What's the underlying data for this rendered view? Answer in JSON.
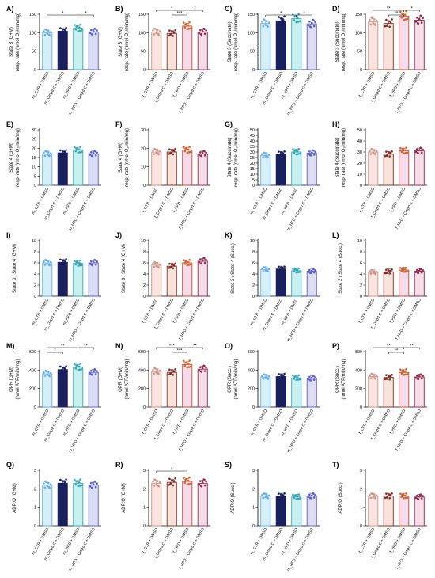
{
  "chart_data": [
    {
      "type": "bar",
      "panel": "A)",
      "ylabel": [
        "State 3 (G+M)",
        "resp. rate (nmol O₂/min/mg)"
      ],
      "ylim": [
        0,
        150
      ],
      "yticks": [
        0,
        50,
        100,
        150
      ],
      "palette": "male",
      "categories": [
        "m_CTR + DMSO",
        "m_Cmpd C + DMSO",
        "m_HFD + DMSO",
        "m_HFD + Cmpd C + DMSO"
      ],
      "values": [
        100,
        104,
        112,
        102
      ],
      "sig": [
        {
          "from": 0,
          "to": 2,
          "label": "*",
          "level": 1
        },
        {
          "from": 2,
          "to": 3,
          "label": "*",
          "level": 1
        }
      ]
    },
    {
      "type": "bar",
      "panel": "B)",
      "ylabel": [
        "State 3 (G+M)",
        "resp. rate (nmol O₂/min/mg)"
      ],
      "ylim": [
        0,
        150
      ],
      "yticks": [
        0,
        50,
        100,
        150
      ],
      "palette": "female",
      "categories": [
        "f_CTR + DMSO",
        "f_Cmpd C + DMSO",
        "f_HFD + DMSO",
        "f_HFD + Cmpd C + DMSO"
      ],
      "values": [
        102,
        98,
        118,
        102
      ],
      "sig": [
        {
          "from": 0,
          "to": 2,
          "label": "*",
          "level": 2
        },
        {
          "from": 2,
          "to": 3,
          "label": "*",
          "level": 2
        },
        {
          "from": 1,
          "to": 2,
          "label": "***",
          "level": 1
        }
      ]
    },
    {
      "type": "bar",
      "panel": "C)",
      "ylabel": [
        "State 3 (Succinate)",
        "resp. rate (nmol O₂/min/mg)"
      ],
      "ylim": [
        0,
        150
      ],
      "yticks": [
        0,
        50,
        100,
        150
      ],
      "palette": "male",
      "categories": [
        "m_CTR + DMSO",
        "m_Cmpd C + DMSO",
        "m_HFD + DMSO",
        "m_HFD + Cmpd C + DMSO"
      ],
      "values": [
        125,
        132,
        138,
        124
      ],
      "sig": [
        {
          "from": 0,
          "to": 2,
          "label": "*",
          "level": 1
        },
        {
          "from": 2,
          "to": 3,
          "label": "*",
          "level": 1
        }
      ]
    },
    {
      "type": "bar",
      "panel": "D)",
      "ylabel": [
        "State 3 (Succinate)",
        "resp. rate (nmol O₂/min/mg)"
      ],
      "ylim": [
        0,
        150
      ],
      "yticks": [
        0,
        50,
        100,
        150
      ],
      "palette": "female",
      "categories": [
        "f_CTR + DMSO",
        "f_Cmpd C + DMSO",
        "f_HFD + DMSO",
        "f_HFD + Cmpd C + DMSO"
      ],
      "values": [
        130,
        125,
        145,
        134
      ],
      "sig": [
        {
          "from": 0,
          "to": 2,
          "label": "**",
          "level": 2
        },
        {
          "from": 2,
          "to": 3,
          "label": "*",
          "level": 2
        },
        {
          "from": 1,
          "to": 2,
          "label": "**",
          "level": 1
        }
      ]
    },
    {
      "type": "bar",
      "panel": "E)",
      "ylabel": [
        "State 4 (G+M)",
        "resp. rate (nmol O₂/min/mg)"
      ],
      "ylim": [
        0,
        30
      ],
      "yticks": [
        0,
        5,
        10,
        15,
        20,
        25,
        30
      ],
      "palette": "male",
      "categories": [
        "m_CTR + DMSO",
        "m_Cmpd C + DMSO",
        "m_HFD + DMSO",
        "m_HFD + Cmpd C + DMSO"
      ],
      "values": [
        17,
        17.5,
        19,
        17
      ],
      "sig": []
    },
    {
      "type": "bar",
      "panel": "F)",
      "ylabel": [
        "State 4 (G+M)",
        "resp. rate (nmol O₂/min/mg)"
      ],
      "ylim": [
        0,
        30
      ],
      "yticks": [
        0,
        10,
        20,
        30
      ],
      "palette": "female",
      "categories": [
        "f_CTR + DMSO",
        "f_Cmpd C + DMSO",
        "f_HFD + DMSO",
        "f_HFD + Cmpd C + DMSO"
      ],
      "values": [
        18,
        18,
        19,
        17
      ],
      "sig": []
    },
    {
      "type": "bar",
      "panel": "G)",
      "ylabel": [
        "State 4 (Succinate)",
        "resp. rate (nmol O₂/min/mg)"
      ],
      "ylim": [
        0,
        50
      ],
      "yticks": [
        0,
        5,
        10,
        15,
        20,
        25,
        30,
        35,
        40,
        45,
        50
      ],
      "palette": "male",
      "categories": [
        "m_CTR + DMSO",
        "m_Cmpd C + DMSO",
        "m_HFD + DMSO",
        "m_HFD + Cmpd C + DMSO"
      ],
      "values": [
        27,
        28,
        30,
        29
      ],
      "sig": []
    },
    {
      "type": "bar",
      "panel": "H)",
      "ylabel": [
        "State 4 (Succinate)",
        "resp. rate (nmol O₂/min/mg)"
      ],
      "ylim": [
        0,
        50
      ],
      "yticks": [
        0,
        10,
        20,
        30,
        40,
        50
      ],
      "palette": "female",
      "categories": [
        "f_CTR + DMSO",
        "f_Cmpd C + DMSO",
        "f_HFD + DMSO",
        "f_HFD + Cmpd C + DMSO"
      ],
      "values": [
        30,
        28,
        31,
        31
      ],
      "sig": []
    },
    {
      "type": "bar",
      "panel": "I)",
      "ylabel": [
        "State 3 / State 4 (G+M)"
      ],
      "ylim": [
        0,
        10
      ],
      "yticks": [
        0,
        2,
        4,
        6,
        8,
        10
      ],
      "palette": "male",
      "categories": [
        "m_CTR + DMSO",
        "m_Cmpd C + DMSO",
        "m_HFD + DMSO",
        "m_HFD + Cmpd C + DMSO"
      ],
      "values": [
        6,
        6.1,
        5.9,
        6
      ],
      "sig": []
    },
    {
      "type": "bar",
      "panel": "J)",
      "ylabel": [
        "State 3 / State 4 (G+M)"
      ],
      "ylim": [
        0,
        10
      ],
      "yticks": [
        0,
        2,
        4,
        6,
        8,
        10
      ],
      "palette": "female",
      "categories": [
        "f_CTR + DMSO",
        "f_Cmpd C + DMSO",
        "f_HFD + DMSO",
        "f_HFD + Cmpd C + DMSO"
      ],
      "values": [
        5.6,
        5.4,
        6,
        6.3
      ],
      "sig": []
    },
    {
      "type": "bar",
      "panel": "K)",
      "ylabel": [
        "State 3 / State 4 (Succ.)"
      ],
      "ylim": [
        0,
        10
      ],
      "yticks": [
        0,
        2,
        4,
        6,
        8,
        10
      ],
      "palette": "male",
      "categories": [
        "m_CTR + DMSO",
        "m_Cmpd C + DMSO",
        "m_HFD + DMSO",
        "m_HFD + Cmpd C + DMSO"
      ],
      "values": [
        4.8,
        4.9,
        4.6,
        4.5
      ],
      "sig": []
    },
    {
      "type": "bar",
      "panel": "L)",
      "ylabel": [
        "State 3 / State 4 (Succ.)"
      ],
      "ylim": [
        0,
        10
      ],
      "yticks": [
        0,
        2,
        4,
        6,
        8,
        10
      ],
      "palette": "female",
      "categories": [
        "f_CTR + DMSO",
        "f_Cmpd C + DMSO",
        "f_HFD + DMSO",
        "f_HFD + Cmpd C + DMSO"
      ],
      "values": [
        4.3,
        4.4,
        4.7,
        4.5
      ],
      "sig": []
    },
    {
      "type": "bar",
      "panel": "M)",
      "ylabel": [
        "OPR (G+M)",
        "(nmol ATP/min/mg)"
      ],
      "ylim": [
        0,
        600
      ],
      "yticks": [
        0,
        200,
        400,
        600
      ],
      "palette": "male",
      "categories": [
        "m_CTR + DMSO",
        "m_Cmpd C + DMSO",
        "m_HFD + DMSO",
        "m_HFD + Cmpd C + DMSO"
      ],
      "values": [
        360,
        405,
        430,
        375
      ],
      "sig": [
        {
          "from": 0,
          "to": 2,
          "label": "**",
          "level": 2
        },
        {
          "from": 2,
          "to": 3,
          "label": "**",
          "level": 2
        },
        {
          "from": 0,
          "to": 1,
          "label": "*",
          "level": 1
        }
      ]
    },
    {
      "type": "bar",
      "panel": "N)",
      "ylabel": [
        "OPR (G+M)",
        "(nmol ATP/min/mg)"
      ],
      "ylim": [
        0,
        600
      ],
      "yticks": [
        0,
        200,
        400,
        600
      ],
      "palette": "female",
      "categories": [
        "f_CTR + DMSO",
        "f_Cmpd C + DMSO",
        "f_HFD + DMSO",
        "f_HFD + Cmpd C + DMSO"
      ],
      "values": [
        385,
        375,
        460,
        410
      ],
      "sig": [
        {
          "from": 0,
          "to": 2,
          "label": "***",
          "level": 2
        },
        {
          "from": 2,
          "to": 3,
          "label": "**",
          "level": 2
        },
        {
          "from": 1,
          "to": 2,
          "label": "***",
          "level": 1
        }
      ]
    },
    {
      "type": "bar",
      "panel": "O)",
      "ylabel": [
        "OPR (Succ.)",
        "(nmol ATP/min/mg)"
      ],
      "ylim": [
        0,
        600
      ],
      "yticks": [
        0,
        200,
        400,
        600
      ],
      "palette": "male",
      "categories": [
        "m_CTR + DMSO",
        "m_Cmpd C + DMSO",
        "m_HFD + DMSO",
        "m_HFD + Cmpd C + DMSO"
      ],
      "values": [
        325,
        330,
        315,
        310
      ],
      "sig": []
    },
    {
      "type": "bar",
      "panel": "P)",
      "ylabel": [
        "OPR (Succ.)",
        "(nmol ATP/min/mg)"
      ],
      "ylim": [
        0,
        600
      ],
      "yticks": [
        0,
        200,
        400,
        600
      ],
      "palette": "female",
      "categories": [
        "f_CTR + DMSO",
        "f_Cmpd C + DMSO",
        "f_HFD + DMSO",
        "f_HFD + Cmpd C + DMSO"
      ],
      "values": [
        330,
        320,
        375,
        325
      ],
      "sig": [
        {
          "from": 0,
          "to": 2,
          "label": "**",
          "level": 2
        },
        {
          "from": 2,
          "to": 3,
          "label": "**",
          "level": 2
        },
        {
          "from": 1,
          "to": 2,
          "label": "**",
          "level": 1
        }
      ]
    },
    {
      "type": "bar",
      "panel": "Q)",
      "ylabel": [
        "ADP:O (G+M)"
      ],
      "ylim": [
        0,
        3
      ],
      "yticks": [
        0,
        1,
        2,
        3
      ],
      "palette": "male",
      "categories": [
        "m_CTR + DMSO",
        "m_Cmpd C + DMSO",
        "m_HFD + DMSO",
        "m_HFD + Cmpd C + DMSO"
      ],
      "values": [
        2.2,
        2.3,
        2.3,
        2.2
      ],
      "sig": []
    },
    {
      "type": "bar",
      "panel": "R)",
      "ylabel": [
        "ADP:O (G+M)"
      ],
      "ylim": [
        0,
        3
      ],
      "yticks": [
        0,
        1,
        2,
        3
      ],
      "palette": "female",
      "categories": [
        "f_CTR + DMSO",
        "f_Cmpd C + DMSO",
        "f_HFD + DMSO",
        "f_HFD + Cmpd C + DMSO"
      ],
      "values": [
        2.3,
        2.35,
        2.4,
        2.3
      ],
      "sig": [
        {
          "from": 0,
          "to": 2,
          "label": "*",
          "level": 1
        }
      ]
    },
    {
      "type": "bar",
      "panel": "S)",
      "ylabel": [
        "ADP:O (Succ.)"
      ],
      "ylim": [
        0,
        3
      ],
      "yticks": [
        0,
        1,
        2,
        3
      ],
      "palette": "male",
      "categories": [
        "m_CTR + DMSO",
        "m_Cmpd C + DMSO",
        "m_HFD + DMSO",
        "m_HFD + Cmpd C + DMSO"
      ],
      "values": [
        1.6,
        1.6,
        1.55,
        1.6
      ],
      "sig": []
    },
    {
      "type": "bar",
      "panel": "T)",
      "ylabel": [
        "ADP:O (Succ.)"
      ],
      "ylim": [
        0,
        3
      ],
      "yticks": [
        0,
        1,
        2,
        3
      ],
      "palette": "female",
      "categories": [
        "f_CTR + DMSO",
        "f_Cmpd C + DMSO",
        "f_HFD + DMSO",
        "f_HFD + Cmpd C + DMSO"
      ],
      "values": [
        1.6,
        1.6,
        1.6,
        1.55
      ],
      "sig": []
    }
  ],
  "palettes": {
    "male": {
      "fill": [
        "#d6eefa",
        "#1a1f5e",
        "#c8f0f2",
        "#dcdcf5"
      ],
      "edge": [
        "#6aaee0",
        "#1a1f5e",
        "#3aa6b0",
        "#5a5fc0"
      ],
      "dots": [
        "#6aaee0",
        "#1a1f5e",
        "#3aa6b0",
        "#5a5fc0"
      ]
    },
    "female": {
      "fill": [
        "#fbe4e0",
        "#f7e3da",
        "#f6dcea",
        "#f8dde8"
      ],
      "edge": [
        "#c8968c",
        "#7a2f2a",
        "#c04a30",
        "#8c2a50"
      ],
      "dots": [
        "#c8968c",
        "#7a2f2a",
        "#c86a30",
        "#8c2a50"
      ]
    }
  }
}
